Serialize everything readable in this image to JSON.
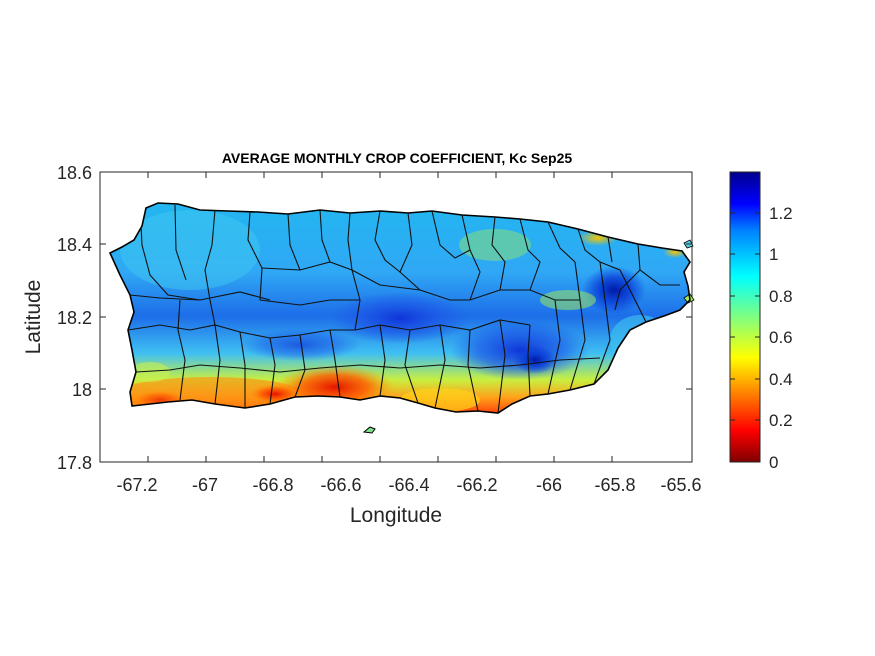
{
  "map": {
    "title": "AVERAGE MONTHLY CROP COEFFICIENT, Kc Sep25",
    "xlabel": "Longitude",
    "ylabel": "Latitude",
    "xlim": [
      -67.3,
      -65.6
    ],
    "ylim": [
      17.8,
      18.6
    ],
    "x_ticks": [
      "-67.2",
      "-67",
      "-66.8",
      "-66.6",
      "-66.4",
      "-66.2",
      "-66",
      "-65.8",
      "-65.6"
    ],
    "y_ticks": [
      "18.6",
      "18.4",
      "18.2",
      "18",
      "17.8"
    ],
    "colorbar": {
      "range": [
        0,
        1.4
      ],
      "ticks": [
        "1.2",
        "1",
        "0.8",
        "0.6",
        "0.4",
        "0.2",
        "0"
      ],
      "colormap": "jet",
      "colors": [
        "#800000",
        "#ff0000",
        "#ff8000",
        "#ffff00",
        "#80ff80",
        "#00ffff",
        "#0080ff",
        "#0000ff",
        "#00008f"
      ]
    },
    "region": "Puerto Rico",
    "boundaries": "municipality outlines"
  }
}
